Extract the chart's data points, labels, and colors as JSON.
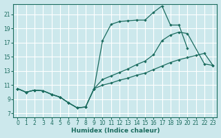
{
  "xlabel": "Humidex (Indice chaleur)",
  "bg_color": "#cce8ec",
  "grid_color": "#ffffff",
  "line_color": "#1a6b5e",
  "xlim": [
    -0.5,
    23.5
  ],
  "ylim": [
    6.5,
    22.5
  ],
  "xticks": [
    0,
    1,
    2,
    3,
    4,
    5,
    6,
    7,
    8,
    9,
    10,
    11,
    12,
    13,
    14,
    15,
    16,
    17,
    18,
    19,
    20,
    21,
    22,
    23
  ],
  "yticks": [
    7,
    9,
    11,
    13,
    15,
    17,
    19,
    21
  ],
  "line1_x": [
    0,
    1,
    2,
    3,
    4,
    5,
    6,
    7,
    8,
    9,
    10,
    11,
    12,
    13,
    14,
    15,
    16,
    17,
    18,
    19,
    20
  ],
  "line1_y": [
    10.5,
    10.0,
    10.3,
    10.2,
    9.7,
    9.3,
    8.5,
    7.8,
    7.9,
    10.5,
    17.3,
    19.6,
    20.0,
    20.1,
    20.2,
    20.2,
    21.3,
    22.2,
    19.5,
    19.5,
    16.2
  ],
  "line2_x": [
    0,
    1,
    2,
    3,
    4,
    5,
    6,
    7,
    8,
    9,
    10,
    11,
    12,
    13,
    14,
    15,
    16,
    17,
    18,
    19,
    20,
    22,
    23
  ],
  "line2_y": [
    10.5,
    10.0,
    10.3,
    10.2,
    9.7,
    9.3,
    8.5,
    7.8,
    7.9,
    10.5,
    11.8,
    12.3,
    12.8,
    13.3,
    13.9,
    14.4,
    15.3,
    17.3,
    18.1,
    18.5,
    18.3,
    14.0,
    13.8
  ],
  "line3_x": [
    0,
    1,
    2,
    3,
    4,
    5,
    6,
    7,
    8,
    9,
    10,
    11,
    12,
    13,
    14,
    15,
    16,
    17,
    18,
    19,
    20,
    21,
    22,
    23
  ],
  "line3_y": [
    10.5,
    10.0,
    10.3,
    10.2,
    9.7,
    9.3,
    8.5,
    7.8,
    7.9,
    10.5,
    11.0,
    11.3,
    11.7,
    12.0,
    12.4,
    12.7,
    13.2,
    13.7,
    14.2,
    14.6,
    14.9,
    15.2,
    15.5,
    13.8
  ]
}
